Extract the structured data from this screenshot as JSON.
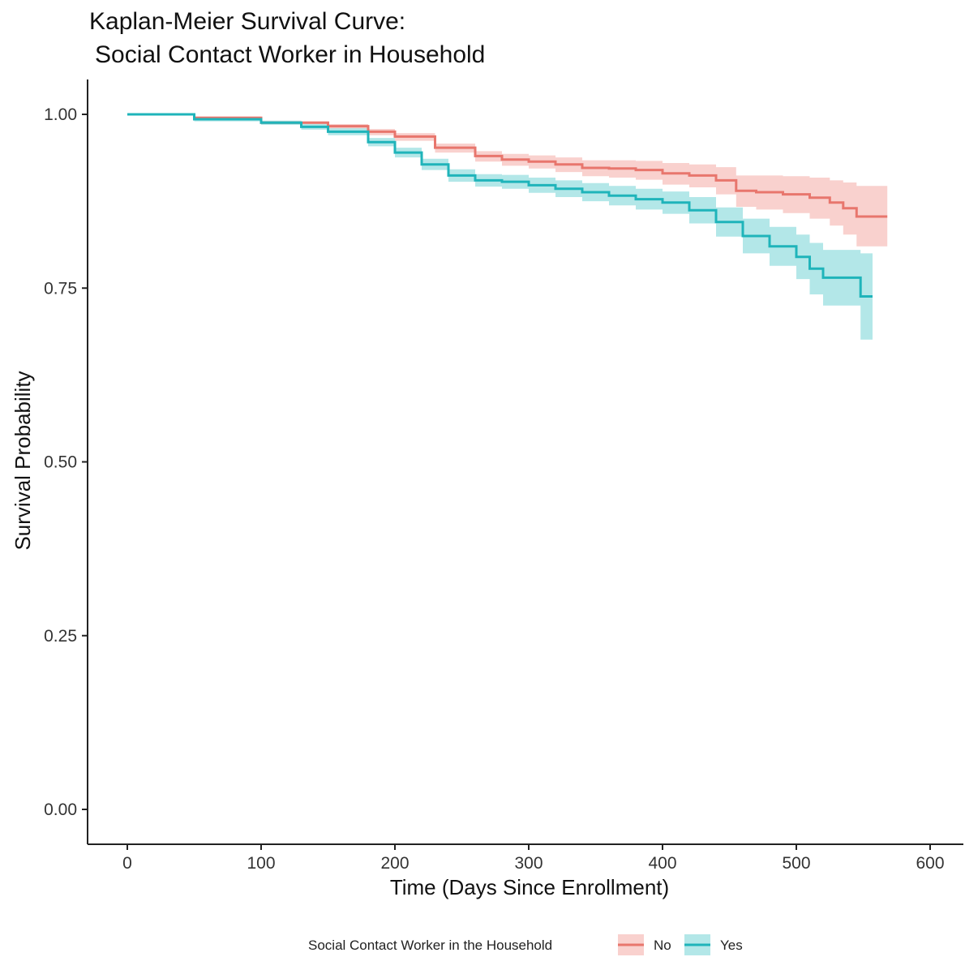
{
  "chart_data": {
    "type": "line",
    "subtype": "kaplan-meier step curve with confidence bands",
    "title": [
      "Kaplan-Meier Survival Curve:",
      "Social Contact Worker in Household"
    ],
    "xlabel": "Time (Days Since Enrollment)",
    "ylabel": "Survival Probability",
    "xlim": [
      0,
      600
    ],
    "ylim": [
      0,
      1
    ],
    "xticks": [
      "0",
      "100",
      "200",
      "300",
      "400",
      "500",
      "600"
    ],
    "yticks": [
      "0.00",
      "0.25",
      "0.50",
      "0.75",
      "1.00"
    ],
    "grid": false,
    "legend": {
      "title": "Social Contact Worker in the Household",
      "position": "bottom"
    },
    "series": [
      {
        "name": "No",
        "color": "#E8766D",
        "band_color": "#F8C9C5",
        "points": [
          [
            0,
            1.0
          ],
          [
            50,
            0.995
          ],
          [
            100,
            0.988
          ],
          [
            150,
            0.983
          ],
          [
            180,
            0.975
          ],
          [
            200,
            0.968
          ],
          [
            230,
            0.952
          ],
          [
            260,
            0.94
          ],
          [
            280,
            0.935
          ],
          [
            300,
            0.932
          ],
          [
            320,
            0.928
          ],
          [
            340,
            0.923
          ],
          [
            360,
            0.922
          ],
          [
            380,
            0.92
          ],
          [
            400,
            0.915
          ],
          [
            420,
            0.912
          ],
          [
            440,
            0.905
          ],
          [
            455,
            0.89
          ],
          [
            470,
            0.888
          ],
          [
            490,
            0.885
          ],
          [
            510,
            0.88
          ],
          [
            525,
            0.873
          ],
          [
            535,
            0.865
          ],
          [
            545,
            0.853
          ],
          [
            568,
            0.853
          ]
        ],
        "upper": [
          [
            0,
            1.0
          ],
          [
            50,
            0.997
          ],
          [
            100,
            0.99
          ],
          [
            150,
            0.986
          ],
          [
            180,
            0.979
          ],
          [
            200,
            0.973
          ],
          [
            230,
            0.958
          ],
          [
            260,
            0.947
          ],
          [
            280,
            0.943
          ],
          [
            300,
            0.941
          ],
          [
            320,
            0.938
          ],
          [
            340,
            0.934
          ],
          [
            360,
            0.934
          ],
          [
            380,
            0.933
          ],
          [
            400,
            0.93
          ],
          [
            420,
            0.928
          ],
          [
            440,
            0.924
          ],
          [
            455,
            0.912
          ],
          [
            470,
            0.912
          ],
          [
            490,
            0.911
          ],
          [
            510,
            0.909
          ],
          [
            525,
            0.905
          ],
          [
            535,
            0.902
          ],
          [
            545,
            0.897
          ],
          [
            568,
            0.897
          ]
        ],
        "lower": [
          [
            0,
            1.0
          ],
          [
            50,
            0.993
          ],
          [
            100,
            0.986
          ],
          [
            150,
            0.979
          ],
          [
            180,
            0.97
          ],
          [
            200,
            0.962
          ],
          [
            230,
            0.945
          ],
          [
            260,
            0.932
          ],
          [
            280,
            0.926
          ],
          [
            300,
            0.922
          ],
          [
            320,
            0.917
          ],
          [
            340,
            0.911
          ],
          [
            360,
            0.909
          ],
          [
            380,
            0.906
          ],
          [
            400,
            0.899
          ],
          [
            420,
            0.895
          ],
          [
            440,
            0.885
          ],
          [
            455,
            0.867
          ],
          [
            470,
            0.863
          ],
          [
            490,
            0.858
          ],
          [
            510,
            0.85
          ],
          [
            525,
            0.84
          ],
          [
            535,
            0.827
          ],
          [
            545,
            0.81
          ],
          [
            568,
            0.81
          ]
        ]
      },
      {
        "name": "Yes",
        "color": "#1FB4BA",
        "band_color": "#A6E3E4",
        "points": [
          [
            0,
            1.0
          ],
          [
            50,
            0.993
          ],
          [
            100,
            0.988
          ],
          [
            130,
            0.982
          ],
          [
            150,
            0.975
          ],
          [
            180,
            0.96
          ],
          [
            200,
            0.945
          ],
          [
            220,
            0.928
          ],
          [
            240,
            0.912
          ],
          [
            260,
            0.905
          ],
          [
            280,
            0.903
          ],
          [
            300,
            0.898
          ],
          [
            320,
            0.893
          ],
          [
            340,
            0.888
          ],
          [
            360,
            0.883
          ],
          [
            380,
            0.878
          ],
          [
            400,
            0.873
          ],
          [
            420,
            0.862
          ],
          [
            440,
            0.845
          ],
          [
            460,
            0.825
          ],
          [
            480,
            0.81
          ],
          [
            500,
            0.795
          ],
          [
            510,
            0.778
          ],
          [
            520,
            0.765
          ],
          [
            545,
            0.765
          ],
          [
            548,
            0.738
          ],
          [
            557,
            0.738
          ]
        ],
        "upper": [
          [
            0,
            1.0
          ],
          [
            50,
            0.996
          ],
          [
            100,
            0.991
          ],
          [
            130,
            0.986
          ],
          [
            150,
            0.98
          ],
          [
            180,
            0.966
          ],
          [
            200,
            0.952
          ],
          [
            220,
            0.936
          ],
          [
            240,
            0.921
          ],
          [
            260,
            0.914
          ],
          [
            280,
            0.913
          ],
          [
            300,
            0.909
          ],
          [
            320,
            0.905
          ],
          [
            340,
            0.901
          ],
          [
            360,
            0.897
          ],
          [
            380,
            0.893
          ],
          [
            400,
            0.889
          ],
          [
            420,
            0.881
          ],
          [
            440,
            0.866
          ],
          [
            460,
            0.85
          ],
          [
            480,
            0.838
          ],
          [
            500,
            0.827
          ],
          [
            510,
            0.815
          ],
          [
            520,
            0.805
          ],
          [
            545,
            0.805
          ],
          [
            548,
            0.8
          ],
          [
            557,
            0.8
          ]
        ],
        "lower": [
          [
            0,
            1.0
          ],
          [
            50,
            0.99
          ],
          [
            100,
            0.985
          ],
          [
            130,
            0.978
          ],
          [
            150,
            0.97
          ],
          [
            180,
            0.954
          ],
          [
            200,
            0.938
          ],
          [
            220,
            0.92
          ],
          [
            240,
            0.903
          ],
          [
            260,
            0.896
          ],
          [
            280,
            0.893
          ],
          [
            300,
            0.887
          ],
          [
            320,
            0.881
          ],
          [
            340,
            0.875
          ],
          [
            360,
            0.869
          ],
          [
            380,
            0.863
          ],
          [
            400,
            0.857
          ],
          [
            420,
            0.843
          ],
          [
            440,
            0.824
          ],
          [
            460,
            0.8
          ],
          [
            480,
            0.782
          ],
          [
            500,
            0.763
          ],
          [
            510,
            0.741
          ],
          [
            520,
            0.725
          ],
          [
            545,
            0.725
          ],
          [
            548,
            0.676
          ],
          [
            557,
            0.676
          ]
        ]
      }
    ]
  }
}
